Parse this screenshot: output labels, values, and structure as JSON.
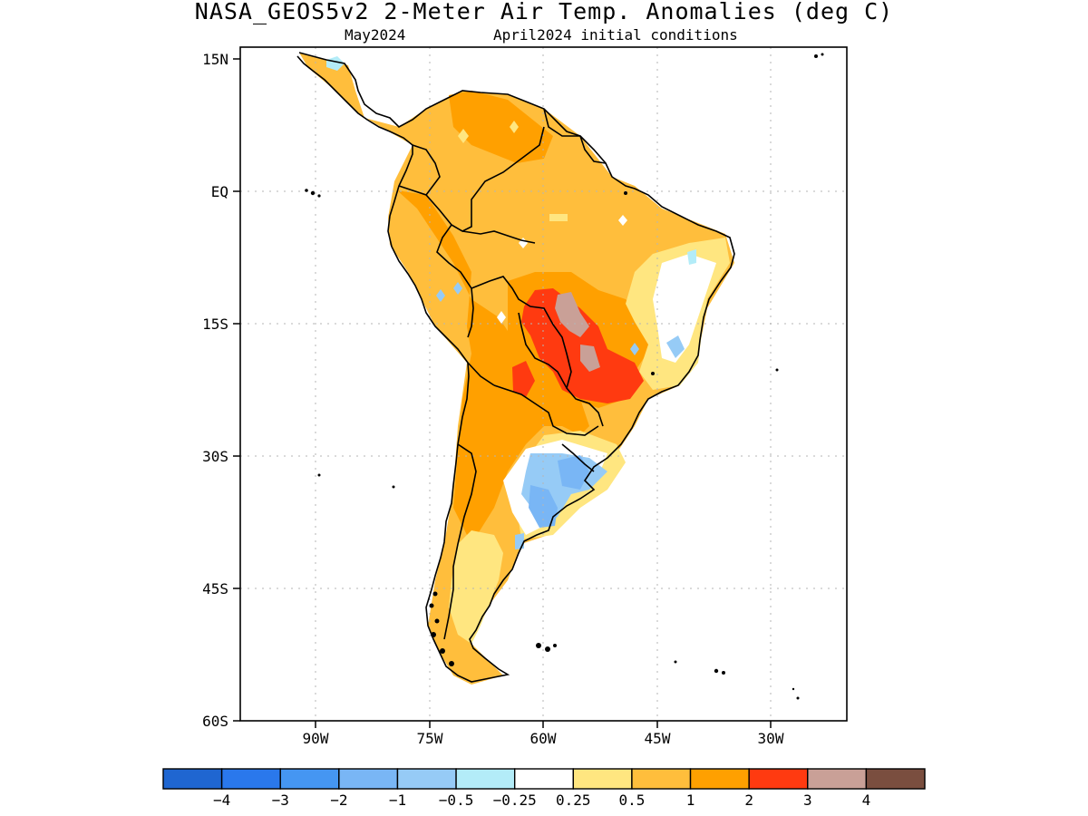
{
  "title": "NASA_GEOS5v2 2-Meter Air Temp. Anomalies (deg C)",
  "subtitle_left": "May2024",
  "subtitle_right": "April2024 initial conditions",
  "lat_labels": [
    "15N",
    "EQ",
    "15S",
    "30S",
    "45S",
    "60S"
  ],
  "lon_labels": [
    "90W",
    "75W",
    "60W",
    "45W",
    "30W"
  ],
  "colorbar": {
    "colors": [
      "#1f66d1",
      "#2a78ec",
      "#4596f2",
      "#79b6f5",
      "#96cbf6",
      "#b3ecf8",
      "#ffffff",
      "#ffe680",
      "#ffbe3c",
      "#ffa000",
      "#ff3a10",
      "#c9a097",
      "#7a4e3f"
    ],
    "labels": [
      "-4",
      "-3",
      "-2",
      "-1",
      "-0.5",
      "-0.25",
      "0.25",
      "0.5",
      "1",
      "2",
      "3",
      "4"
    ]
  },
  "map_colors": {
    "warm_light": "#ffe680",
    "warm": "#ffbe3c",
    "warm_strong": "#ffa000",
    "hot": "#ff3a10",
    "very_hot": "#c9a097",
    "cool_light": "#b3ecf8",
    "cool": "#96cbf6",
    "cool_mid": "#79b6f5",
    "land_outline": "#000000"
  }
}
